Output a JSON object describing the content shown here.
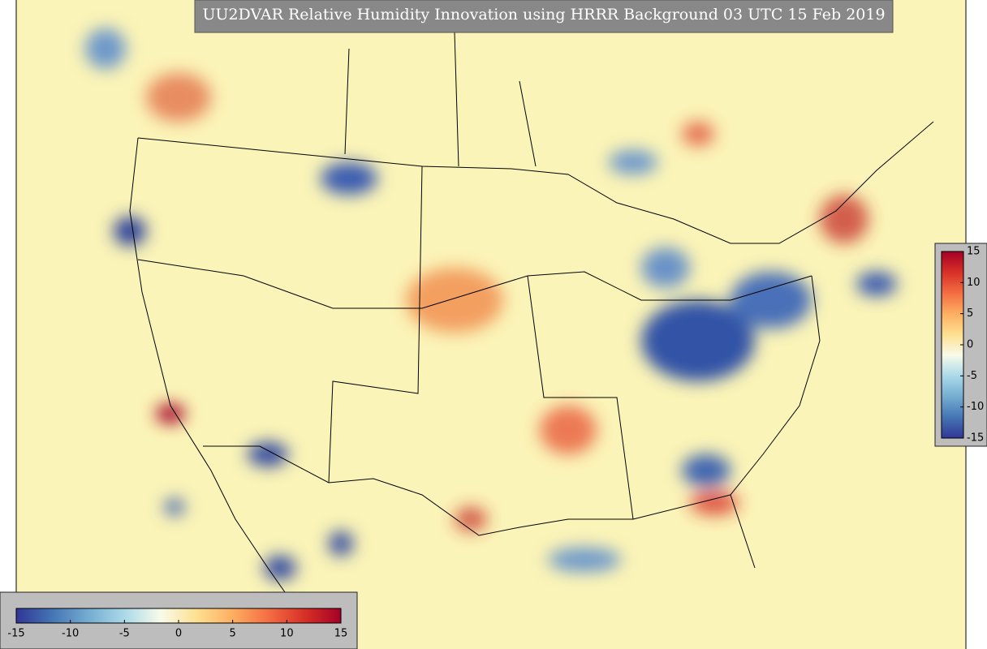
{
  "title": "UU2DVAR Relative Humidity Innovation using HRRR Background 03 UTC 15 Feb 2019",
  "colorbars": [
    {
      "orientation": "horizontal",
      "range": [
        -15,
        15
      ],
      "ticks": [
        -15,
        -10,
        -5,
        0,
        5,
        10,
        15
      ],
      "colors": [
        "#313695",
        "#4575b4",
        "#74add1",
        "#abd9e9",
        "#f7fbe9",
        "#fee090",
        "#fdae61",
        "#f46d43",
        "#d73027",
        "#a50026"
      ]
    },
    {
      "orientation": "vertical",
      "range": [
        -15,
        15
      ],
      "ticks": [
        -15,
        -10,
        -5,
        0,
        5,
        10,
        15
      ],
      "colors": [
        "#313695",
        "#4575b4",
        "#74add1",
        "#abd9e9",
        "#f7fbe9",
        "#fee090",
        "#fdae61",
        "#f46d43",
        "#d73027",
        "#a50026"
      ]
    }
  ]
}
